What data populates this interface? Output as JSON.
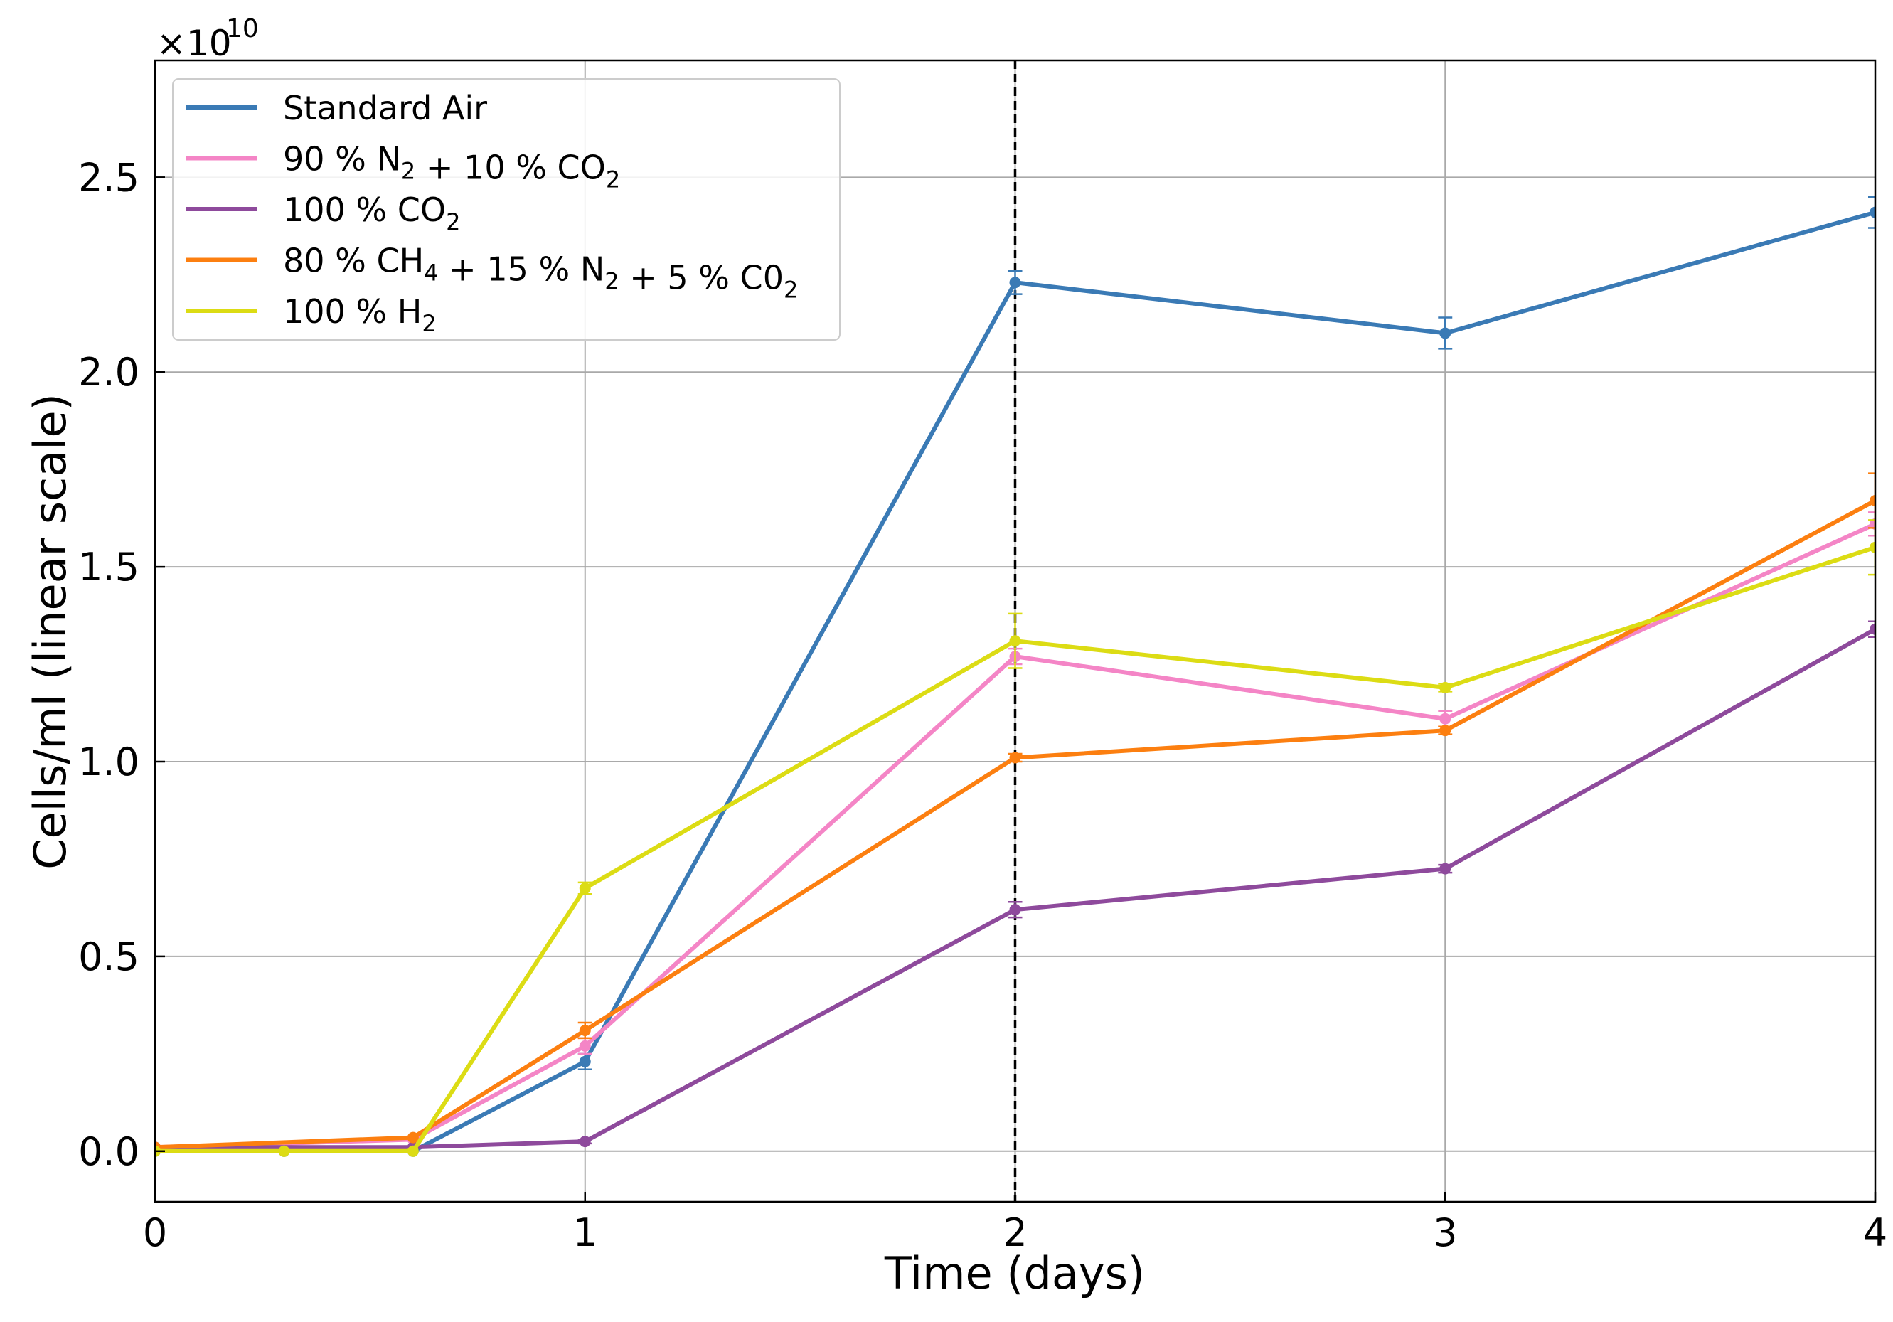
{
  "chart_data": {
    "type": "line",
    "title": "",
    "xlabel": "Time (days)",
    "ylabel": "Cells/ml (linear scale)",
    "y_multiplier_label": "×10",
    "y_multiplier_exponent": "10",
    "xlim": [
      0,
      4
    ],
    "ylim": [
      -0.13,
      2.8
    ],
    "x_ticks": [
      0,
      1,
      2,
      3,
      4
    ],
    "x_tick_labels": [
      "0",
      "1",
      "2",
      "3",
      "4"
    ],
    "y_ticks": [
      0.0,
      0.5,
      1.0,
      1.5,
      2.0,
      2.5
    ],
    "y_tick_labels": [
      "0.0",
      "0.5",
      "1.0",
      "1.5",
      "2.0",
      "2.5"
    ],
    "grid": true,
    "legend_position": "top-left",
    "vertical_marker": {
      "x": 2,
      "style": "dashed",
      "color": "#000000"
    },
    "series": [
      {
        "name": "Standard Air",
        "label_parts": [
          {
            "t": "Standard Air"
          }
        ],
        "color": "#3a7ab5",
        "x": [
          0,
          0.3,
          0.6,
          1,
          2,
          3,
          4
        ],
        "y": [
          0.0,
          0.0,
          0.0,
          0.23,
          2.23,
          2.1,
          2.41
        ],
        "err": [
          0,
          0,
          0,
          0.02,
          0.03,
          0.04,
          0.04
        ]
      },
      {
        "name": "90 % N2 + 10 % CO2",
        "label_parts": [
          {
            "t": "90 % N"
          },
          {
            "sub": "2"
          },
          {
            "t": " + 10 % CO"
          },
          {
            "sub": "2"
          }
        ],
        "color": "#f485c6",
        "x": [
          0,
          0.6,
          1,
          2,
          3,
          4
        ],
        "y": [
          0.01,
          0.03,
          0.27,
          1.27,
          1.11,
          1.61
        ],
        "err": [
          0,
          0,
          0.02,
          0.02,
          0.02,
          0.03
        ]
      },
      {
        "name": "100 % CO2",
        "label_parts": [
          {
            "t": "100 % CO"
          },
          {
            "sub": "2"
          }
        ],
        "color": "#8e4a9c",
        "x": [
          0,
          0.6,
          1,
          2,
          3,
          4
        ],
        "y": [
          0.01,
          0.01,
          0.025,
          0.62,
          0.725,
          1.34
        ],
        "err": [
          0,
          0,
          0.005,
          0.02,
          0.01,
          0.02
        ]
      },
      {
        "name": "80 % CH4 + 15 % N2 + 5 % C02",
        "label_parts": [
          {
            "t": "80 % CH"
          },
          {
            "sub": "4"
          },
          {
            "t": " + 15 % N"
          },
          {
            "sub": "2"
          },
          {
            "t": " + 5 % C0"
          },
          {
            "sub": "2"
          }
        ],
        "color": "#fc7f10",
        "x": [
          0,
          0.6,
          1,
          2,
          3,
          4
        ],
        "y": [
          0.01,
          0.035,
          0.31,
          1.01,
          1.08,
          1.67
        ],
        "err": [
          0,
          0,
          0.02,
          0.01,
          0.01,
          0.07
        ]
      },
      {
        "name": "100 % H2",
        "label_parts": [
          {
            "t": "100 % H"
          },
          {
            "sub": "2"
          }
        ],
        "color": "#dcdc14",
        "x": [
          0,
          0.3,
          0.6,
          1,
          2,
          3,
          4
        ],
        "y": [
          0.0,
          0.0,
          0.0,
          0.675,
          1.31,
          1.19,
          1.55
        ],
        "err": [
          0,
          0,
          0,
          0.015,
          0.07,
          0.01,
          0.07
        ]
      }
    ]
  }
}
